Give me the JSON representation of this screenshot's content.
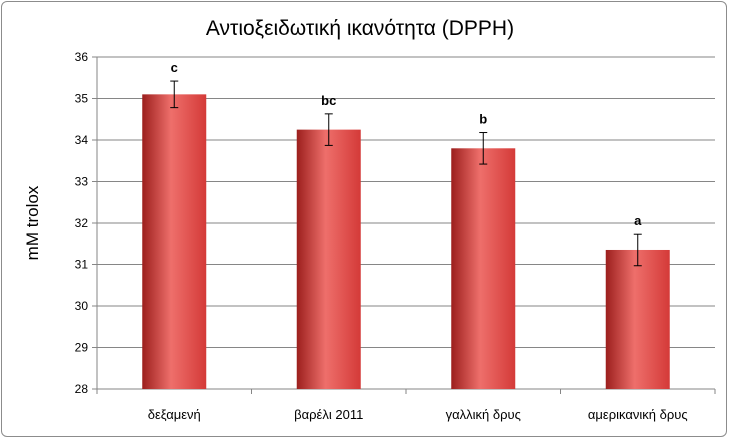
{
  "chart_data": {
    "type": "bar",
    "title": "Αντιοξειδωτική ικανότητα (DPPH)",
    "xlabel": "",
    "ylabel": "mM trolox",
    "categories": [
      "δεξαμενή",
      "βαρέλι 2011",
      "γαλλική δρυς",
      "αμερικανική δρυς"
    ],
    "values": [
      35.1,
      34.25,
      33.8,
      31.35
    ],
    "errors": [
      0.32,
      0.38,
      0.38,
      0.38
    ],
    "significance": [
      "c",
      "bc",
      "b",
      "a"
    ],
    "ylim": [
      28,
      36
    ],
    "yticks": [
      28,
      29,
      30,
      31,
      32,
      33,
      34,
      35,
      36
    ],
    "grid": true,
    "legend": "none",
    "colors": {
      "bar": "#d43a38",
      "bar_dark": "#9c1f1d",
      "bar_light": "#ee6f6b",
      "grid": "#868686"
    }
  }
}
